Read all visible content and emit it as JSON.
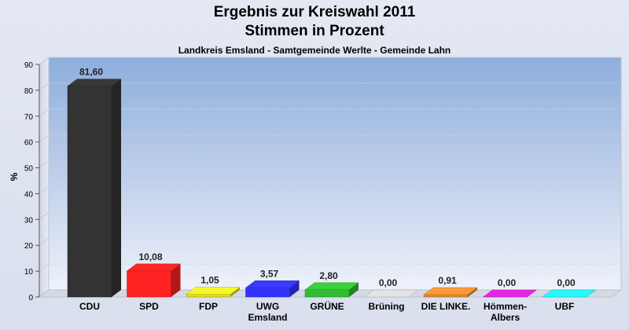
{
  "title": "Ergebnis zur Kreiswahl 2011",
  "subtitle": "Stimmen in Prozent",
  "region": "Landkreis Emsland - Samtgemeinde Werlte - Gemeinde Lahn",
  "chart_data": {
    "type": "bar",
    "ylabel": "%",
    "ylim": [
      0,
      90
    ],
    "yticks": [
      0,
      10,
      20,
      30,
      40,
      50,
      60,
      70,
      80,
      90
    ],
    "grid": true,
    "categories": [
      [
        "CDU"
      ],
      [
        "SPD"
      ],
      [
        "FDP"
      ],
      [
        "UWG",
        "Emsland"
      ],
      [
        "GRÜNE"
      ],
      [
        "Brüning"
      ],
      [
        "DIE LINKE."
      ],
      [
        "Hömmen-",
        "Albers"
      ],
      [
        "UBF"
      ]
    ],
    "values": [
      81.6,
      10.08,
      1.05,
      3.57,
      2.8,
      0.0,
      0.91,
      0.0,
      0.0
    ],
    "value_labels": [
      "81,60",
      "10,08",
      "1,05",
      "3,57",
      "2,80",
      "0,00",
      "0,91",
      "0,00",
      "0,00"
    ],
    "colors": [
      "#333333",
      "#ff2222",
      "#dddd22",
      "#3333ff",
      "#33bb33",
      "#cccccc",
      "#e08a30",
      "#cc22cc",
      "#22dddd"
    ]
  }
}
